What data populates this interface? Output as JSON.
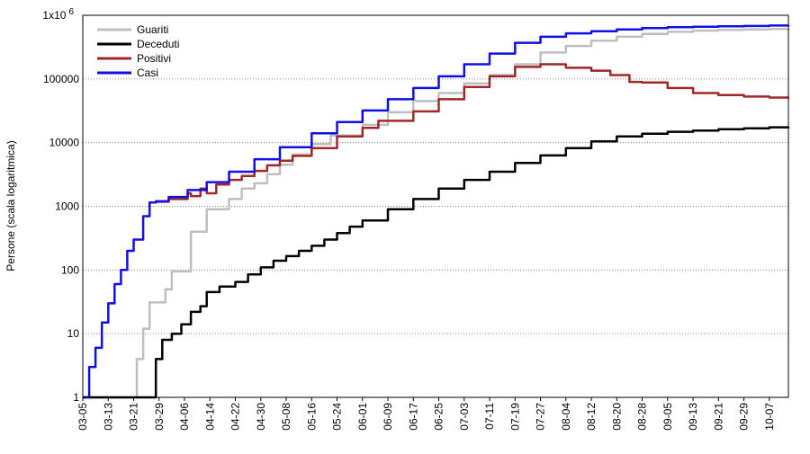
{
  "chart_data": {
    "type": "line",
    "ylabel": "Persone (scala logaritmica)",
    "yscale": "log",
    "ylim": [
      1,
      1000000
    ],
    "y_ticks": [
      {
        "value": 1,
        "label": "1"
      },
      {
        "value": 10,
        "label": "10"
      },
      {
        "value": 100,
        "label": "100"
      },
      {
        "value": 1000,
        "label": "1000"
      },
      {
        "value": 10000,
        "label": "10000"
      },
      {
        "value": 100000,
        "label": "100000"
      },
      {
        "value": 1000000,
        "label": "1x10",
        "exponent": "6"
      }
    ],
    "grid": {
      "horizontal": true,
      "style": "dotted"
    },
    "legend_position": "top-left",
    "x_ticks": [
      "03-05",
      "03-13",
      "03-21",
      "03-29",
      "04-06",
      "04-14",
      "04-22",
      "04-30",
      "05-08",
      "05-16",
      "05-24",
      "06-01",
      "06-09",
      "06-17",
      "06-25",
      "07-03",
      "07-11",
      "07-19",
      "07-27",
      "08-04",
      "08-12",
      "08-20",
      "08-28",
      "09-05",
      "09-13",
      "09-21",
      "09-29",
      "10-07"
    ],
    "x_range": [
      "03-05",
      "10-13"
    ],
    "series": [
      {
        "name": "Guariti",
        "color": "#bfbfbf",
        "points": [
          [
            "03-05",
            0
          ],
          [
            "03-19",
            0
          ],
          [
            "03-20",
            1
          ],
          [
            "03-22",
            4
          ],
          [
            "03-24",
            12
          ],
          [
            "03-26",
            31
          ],
          [
            "03-30",
            31
          ],
          [
            "03-31",
            50
          ],
          [
            "04-02",
            95
          ],
          [
            "04-07",
            95
          ],
          [
            "04-08",
            400
          ],
          [
            "04-12",
            400
          ],
          [
            "04-13",
            900
          ],
          [
            "04-17",
            900
          ],
          [
            "04-20",
            1300
          ],
          [
            "04-24",
            1900
          ],
          [
            "04-28",
            2300
          ],
          [
            "05-02",
            3200
          ],
          [
            "05-06",
            4500
          ],
          [
            "05-10",
            6500
          ],
          [
            "05-16",
            9500
          ],
          [
            "05-22",
            13000
          ],
          [
            "06-01",
            19000
          ],
          [
            "06-09",
            30000
          ],
          [
            "06-17",
            45000
          ],
          [
            "06-25",
            60000
          ],
          [
            "07-03",
            85000
          ],
          [
            "07-11",
            115000
          ],
          [
            "07-19",
            170000
          ],
          [
            "07-27",
            260000
          ],
          [
            "08-04",
            330000
          ],
          [
            "08-12",
            400000
          ],
          [
            "08-20",
            460000
          ],
          [
            "08-28",
            510000
          ],
          [
            "09-05",
            550000
          ],
          [
            "09-13",
            575000
          ],
          [
            "09-21",
            590000
          ],
          [
            "09-29",
            600000
          ],
          [
            "10-07",
            610000
          ],
          [
            "10-13",
            620000
          ]
        ]
      },
      {
        "name": "Deceduti",
        "color": "#000000",
        "points": [
          [
            "03-05",
            0
          ],
          [
            "03-25",
            0
          ],
          [
            "03-26",
            1
          ],
          [
            "03-28",
            4
          ],
          [
            "03-30",
            8
          ],
          [
            "04-02",
            10
          ],
          [
            "04-05",
            14
          ],
          [
            "04-08",
            22
          ],
          [
            "04-11",
            27
          ],
          [
            "04-13",
            45
          ],
          [
            "04-17",
            55
          ],
          [
            "04-22",
            65
          ],
          [
            "04-26",
            85
          ],
          [
            "04-30",
            110
          ],
          [
            "05-04",
            140
          ],
          [
            "05-08",
            165
          ],
          [
            "05-12",
            200
          ],
          [
            "05-16",
            240
          ],
          [
            "05-20",
            300
          ],
          [
            "05-24",
            380
          ],
          [
            "05-28",
            480
          ],
          [
            "06-01",
            600
          ],
          [
            "06-09",
            900
          ],
          [
            "06-17",
            1300
          ],
          [
            "06-25",
            1900
          ],
          [
            "07-03",
            2600
          ],
          [
            "07-11",
            3500
          ],
          [
            "07-19",
            4800
          ],
          [
            "07-27",
            6300
          ],
          [
            "08-04",
            8200
          ],
          [
            "08-12",
            10500
          ],
          [
            "08-20",
            12500
          ],
          [
            "08-28",
            13800
          ],
          [
            "09-05",
            14800
          ],
          [
            "09-13",
            15500
          ],
          [
            "09-21",
            16200
          ],
          [
            "09-29",
            16800
          ],
          [
            "10-07",
            17400
          ],
          [
            "10-13",
            17900
          ]
        ]
      },
      {
        "name": "Positivi",
        "color": "#a02828",
        "points": [
          [
            "03-28",
            1180
          ],
          [
            "04-01",
            1300
          ],
          [
            "04-07",
            1600
          ],
          [
            "04-08",
            1450
          ],
          [
            "04-11",
            1900
          ],
          [
            "04-13",
            1600
          ],
          [
            "04-16",
            2200
          ],
          [
            "04-20",
            2600
          ],
          [
            "04-24",
            3000
          ],
          [
            "04-28",
            3600
          ],
          [
            "05-02",
            4400
          ],
          [
            "05-06",
            5200
          ],
          [
            "05-10",
            6200
          ],
          [
            "05-16",
            8200
          ],
          [
            "05-24",
            12500
          ],
          [
            "06-01",
            17000
          ],
          [
            "06-06",
            22000
          ],
          [
            "06-09",
            22000
          ],
          [
            "06-17",
            31000
          ],
          [
            "06-25",
            48000
          ],
          [
            "07-03",
            75000
          ],
          [
            "07-11",
            110000
          ],
          [
            "07-19",
            155000
          ],
          [
            "07-27",
            170000
          ],
          [
            "08-04",
            150000
          ],
          [
            "08-12",
            135000
          ],
          [
            "08-18",
            115000
          ],
          [
            "08-24",
            90000
          ],
          [
            "08-28",
            88000
          ],
          [
            "09-05",
            72000
          ],
          [
            "09-13",
            60000
          ],
          [
            "09-21",
            56000
          ],
          [
            "09-29",
            53000
          ],
          [
            "10-07",
            51000
          ],
          [
            "10-13",
            51500
          ]
        ]
      },
      {
        "name": "Casi",
        "color": "#1010e6",
        "points": [
          [
            "03-05",
            0
          ],
          [
            "03-06",
            1
          ],
          [
            "03-07",
            3
          ],
          [
            "03-09",
            6
          ],
          [
            "03-11",
            15
          ],
          [
            "03-13",
            30
          ],
          [
            "03-15",
            60
          ],
          [
            "03-17",
            100
          ],
          [
            "03-19",
            200
          ],
          [
            "03-21",
            300
          ],
          [
            "03-24",
            700
          ],
          [
            "03-26",
            1150
          ],
          [
            "03-28",
            1200
          ],
          [
            "04-01",
            1400
          ],
          [
            "04-07",
            1800
          ],
          [
            "04-13",
            2400
          ],
          [
            "04-20",
            3500
          ],
          [
            "04-28",
            5500
          ],
          [
            "05-06",
            8500
          ],
          [
            "05-16",
            14000
          ],
          [
            "05-24",
            21000
          ],
          [
            "06-01",
            32000
          ],
          [
            "06-09",
            48000
          ],
          [
            "06-17",
            72000
          ],
          [
            "06-25",
            110000
          ],
          [
            "07-03",
            170000
          ],
          [
            "07-11",
            250000
          ],
          [
            "07-19",
            370000
          ],
          [
            "07-27",
            460000
          ],
          [
            "08-04",
            520000
          ],
          [
            "08-12",
            560000
          ],
          [
            "08-20",
            600000
          ],
          [
            "08-28",
            630000
          ],
          [
            "09-05",
            650000
          ],
          [
            "09-13",
            660000
          ],
          [
            "09-21",
            670000
          ],
          [
            "09-29",
            680000
          ],
          [
            "10-07",
            690000
          ],
          [
            "10-13",
            700000
          ]
        ]
      }
    ]
  }
}
